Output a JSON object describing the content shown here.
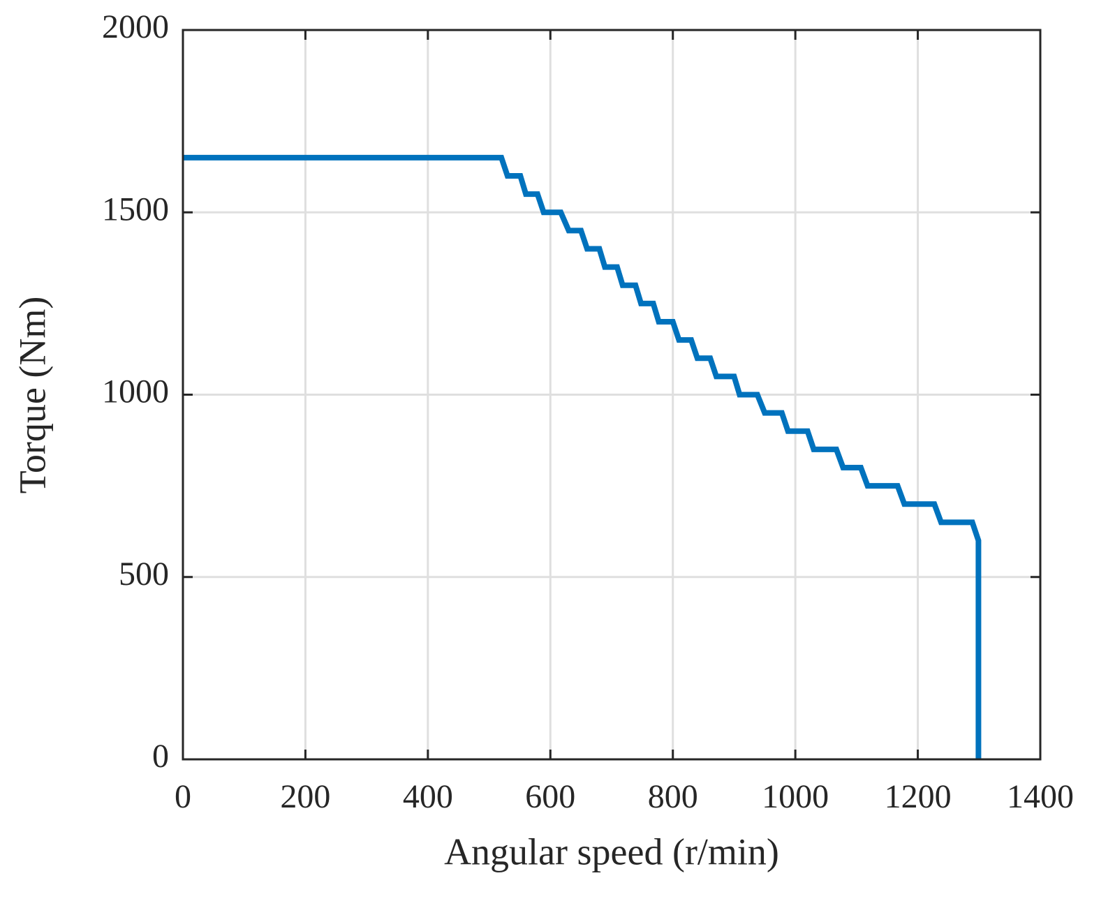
{
  "chart_data": {
    "type": "line",
    "xlabel": "Angular speed (r/min)",
    "ylabel": "Torque (Nm)",
    "x": [
      0,
      520,
      530,
      551,
      560,
      579,
      589,
      617,
      630,
      650,
      660,
      680,
      689,
      709,
      718,
      739,
      748,
      768,
      777,
      800,
      810,
      830,
      840,
      861,
      871,
      900,
      909,
      938,
      950,
      978,
      988,
      1020,
      1030,
      1067,
      1078,
      1107,
      1118,
      1167,
      1178,
      1227,
      1238,
      1289,
      1299,
      1299
    ],
    "values": [
      1650,
      1650,
      1600,
      1600,
      1550,
      1550,
      1500,
      1500,
      1450,
      1450,
      1400,
      1400,
      1350,
      1350,
      1300,
      1300,
      1250,
      1250,
      1200,
      1200,
      1150,
      1150,
      1100,
      1100,
      1050,
      1050,
      1000,
      1000,
      950,
      950,
      900,
      900,
      850,
      850,
      800,
      800,
      750,
      750,
      700,
      700,
      650,
      650,
      600,
      0
    ],
    "color": "#0072bd",
    "xlim": [
      0,
      1400
    ],
    "xticks": [
      0,
      200,
      400,
      600,
      800,
      1000,
      1200,
      1400
    ],
    "ylim": [
      0,
      2000
    ],
    "yticks": [
      0,
      500,
      1000,
      1500,
      2000
    ],
    "grid": true
  }
}
